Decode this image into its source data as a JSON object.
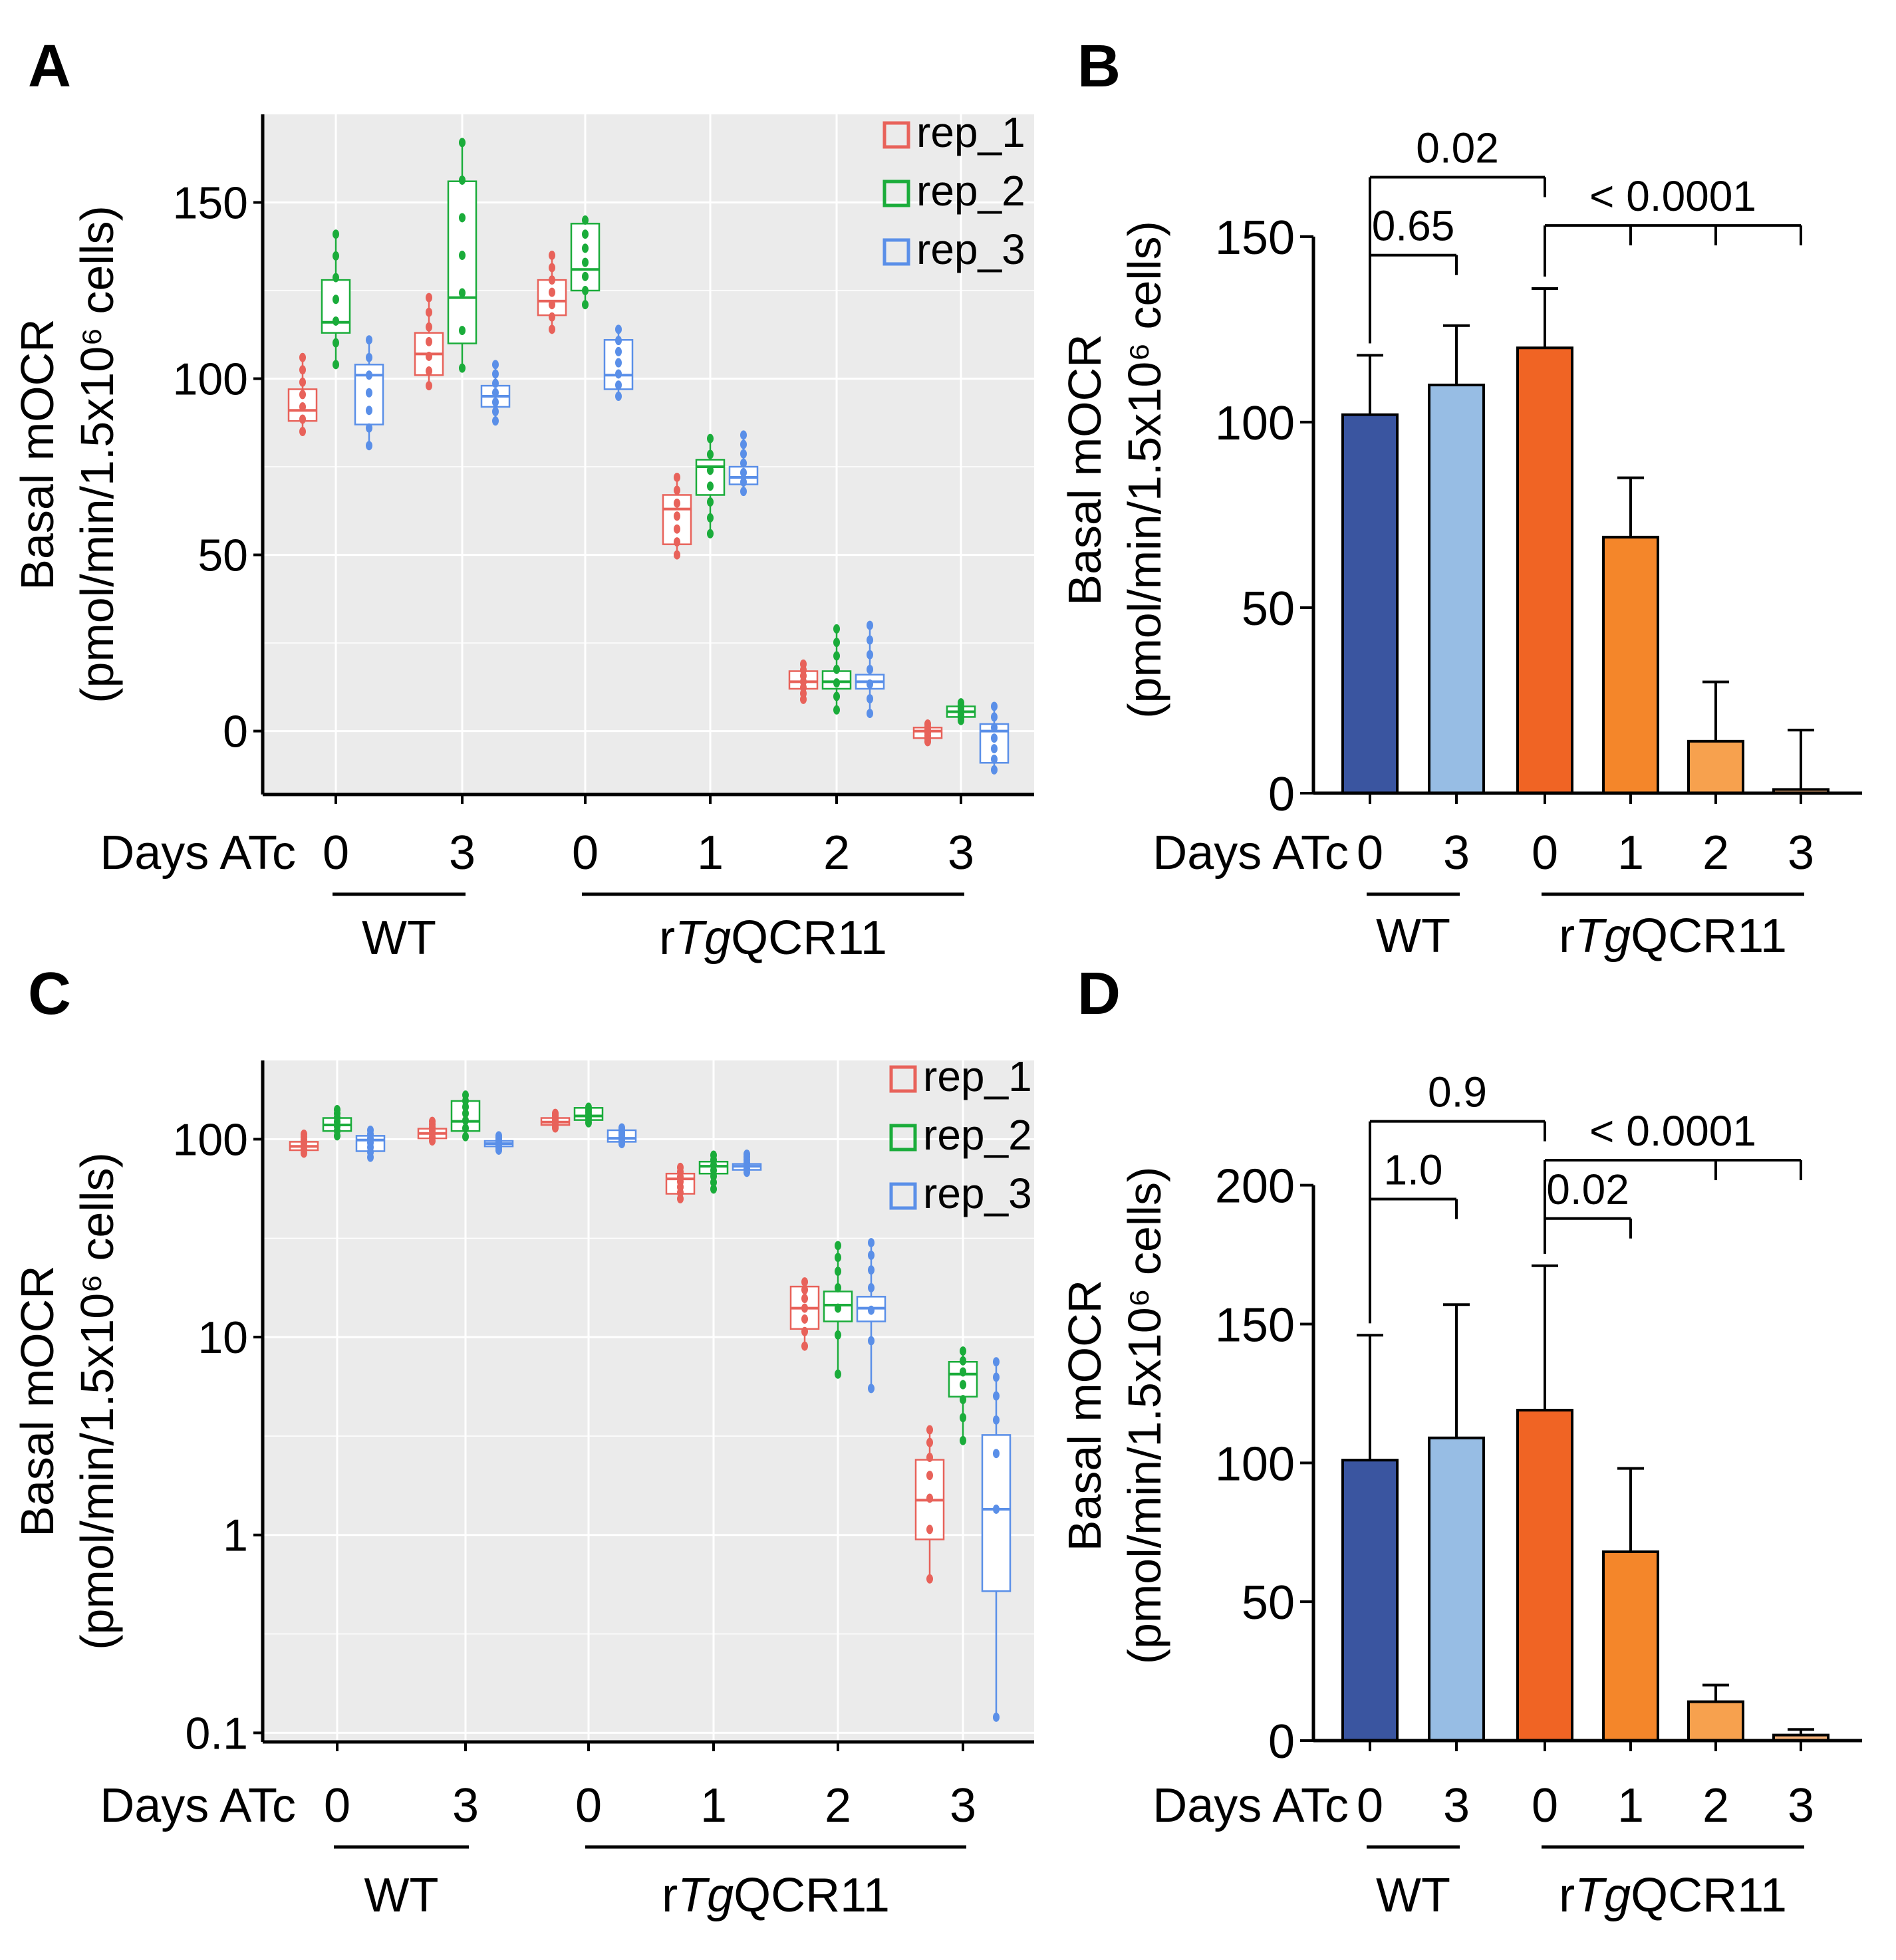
{
  "colors": {
    "rep_1": "#e8625a",
    "rep_2": "#1aac3a",
    "rep_3": "#5a8fe8",
    "panel_bg": "#ebebeb",
    "bar_wt0": "#3a55a0",
    "bar_wt3": "#97bde4",
    "bar_r0": "#f06424",
    "bar_r1": "#f4862a",
    "bar_r2": "#f7a14e",
    "bar_r3": "#f8b57c"
  },
  "chart_data": [
    {
      "panel": "A",
      "type": "box",
      "ylabel_line1": "Basal mOCR",
      "ylabel_line2": "(pmol/min/1.5x10⁶ cells)",
      "xlabel": "Days ATc",
      "yscale": "linear",
      "ylim": [
        -18,
        175
      ],
      "yticks": [
        0,
        50,
        100,
        150
      ],
      "ytick_labels": [
        "0",
        "50",
        "100",
        "150"
      ],
      "minor_grid": [
        25,
        75,
        125
      ],
      "categories": [
        "0",
        "3",
        "0",
        "1",
        "2",
        "3"
      ],
      "groups": [
        {
          "label": "WT",
          "from": 0,
          "to": 1
        },
        {
          "label": "rTgQCR11",
          "label_parts": [
            "r",
            "Tg",
            "QCR11"
          ],
          "from": 2,
          "to": 5
        }
      ],
      "legend": [
        "rep_1",
        "rep_2",
        "rep_3"
      ],
      "series": [
        {
          "name": "rep_1",
          "boxes": [
            {
              "q1": 88,
              "med": 91,
              "q3": 97,
              "min": 85,
              "max": 106
            },
            {
              "q1": 101,
              "med": 107,
              "q3": 113,
              "min": 98,
              "max": 123
            },
            {
              "q1": 118,
              "med": 122,
              "q3": 128,
              "min": 114,
              "max": 135
            },
            {
              "q1": 53,
              "med": 63,
              "q3": 67,
              "min": 50,
              "max": 72
            },
            {
              "q1": 12,
              "med": 14,
              "q3": 17,
              "min": 9,
              "max": 19
            },
            {
              "q1": -2,
              "med": 0,
              "q3": 1,
              "min": -3,
              "max": 2
            }
          ]
        },
        {
          "name": "rep_2",
          "boxes": [
            {
              "q1": 113,
              "med": 116,
              "q3": 128,
              "min": 104,
              "max": 141
            },
            {
              "q1": 110,
              "med": 123,
              "q3": 156,
              "min": 103,
              "max": 167
            },
            {
              "q1": 125,
              "med": 131,
              "q3": 144,
              "min": 121,
              "max": 145
            },
            {
              "q1": 67,
              "med": 75,
              "q3": 77,
              "min": 56,
              "max": 83
            },
            {
              "q1": 12,
              "med": 14,
              "q3": 17,
              "min": 6,
              "max": 29
            },
            {
              "q1": 4,
              "med": 5.5,
              "q3": 7,
              "min": 3,
              "max": 8
            }
          ]
        },
        {
          "name": "rep_3",
          "boxes": [
            {
              "q1": 87,
              "med": 101,
              "q3": 104,
              "min": 81,
              "max": 111
            },
            {
              "q1": 92,
              "med": 95,
              "q3": 98,
              "min": 88,
              "max": 104
            },
            {
              "q1": 97,
              "med": 101,
              "q3": 111,
              "min": 95,
              "max": 114
            },
            {
              "q1": 70,
              "med": 72,
              "q3": 75,
              "min": 68,
              "max": 84
            },
            {
              "q1": 12,
              "med": 14,
              "q3": 16,
              "min": 5,
              "max": 30
            },
            {
              "q1": -9,
              "med": 0,
              "q3": 2,
              "min": -11,
              "max": 7
            }
          ]
        }
      ]
    },
    {
      "panel": "B",
      "type": "bar",
      "ylabel_line1": "Basal mOCR",
      "ylabel_line2": "(pmol/min/1.5x10⁶ cells)",
      "xlabel": "Days ATc",
      "ylim": [
        0,
        160
      ],
      "yticks": [
        0,
        50,
        100,
        150
      ],
      "ytick_labels": [
        "0",
        "50",
        "100",
        "150"
      ],
      "categories": [
        "0",
        "3",
        "0",
        "1",
        "2",
        "3"
      ],
      "groups": [
        {
          "label": "WT",
          "from": 0,
          "to": 1
        },
        {
          "label": "rTgQCR11",
          "label_parts": [
            "r",
            "Tg",
            "QCR11"
          ],
          "from": 2,
          "to": 5
        }
      ],
      "values": [
        102,
        110,
        120,
        69,
        14,
        1
      ],
      "errors": [
        16,
        16,
        16,
        16,
        16,
        16
      ],
      "brackets": [
        {
          "label": "0.65",
          "from": 0,
          "to": [
            1
          ],
          "y": 145
        },
        {
          "label": "0.02",
          "from": 0,
          "to": [
            2
          ],
          "y": 166
        },
        {
          "label": "< 0.0001",
          "from": 2,
          "to": [
            3,
            4,
            5
          ],
          "y": 153
        }
      ]
    },
    {
      "panel": "C",
      "type": "box",
      "ylabel_line1": "Basal mOCR",
      "ylabel_line2": "(pmol/min/1.5x10⁶ cells)",
      "xlabel": "Days ATc",
      "yscale": "log",
      "ylim": [
        0.09,
        250
      ],
      "yticks": [
        0.1,
        1,
        10,
        100
      ],
      "ytick_labels": [
        "0.1",
        "1",
        "10",
        "100"
      ],
      "minor_grid": [
        0.316,
        3.16,
        31.6
      ],
      "categories": [
        "0",
        "3",
        "0",
        "1",
        "2",
        "3"
      ],
      "groups": [
        {
          "label": "WT",
          "from": 0,
          "to": 1
        },
        {
          "label": "rTgQCR11",
          "label_parts": [
            "r",
            "Tg",
            "QCR11"
          ],
          "from": 2,
          "to": 5
        }
      ],
      "legend": [
        "rep_1",
        "rep_2",
        "rep_3"
      ],
      "series": [
        {
          "name": "rep_1",
          "boxes": [
            {
              "q1": 88,
              "med": 92,
              "q3": 97,
              "min": 85,
              "max": 106
            },
            {
              "q1": 101,
              "med": 107,
              "q3": 113,
              "min": 98,
              "max": 123
            },
            {
              "q1": 118,
              "med": 122,
              "q3": 128,
              "min": 114,
              "max": 135
            },
            {
              "q1": 53,
              "med": 63,
              "q3": 67,
              "min": 50,
              "max": 72
            },
            {
              "q1": 11,
              "med": 14,
              "q3": 18,
              "min": 9,
              "max": 19
            },
            {
              "q1": 0.95,
              "med": 1.5,
              "q3": 2.4,
              "min": 0.6,
              "max": 3.4
            }
          ]
        },
        {
          "name": "rep_2",
          "boxes": [
            {
              "q1": 110,
              "med": 118,
              "q3": 128,
              "min": 104,
              "max": 141
            },
            {
              "q1": 110,
              "med": 123,
              "q3": 156,
              "min": 103,
              "max": 167
            },
            {
              "q1": 125,
              "med": 131,
              "q3": 144,
              "min": 121,
              "max": 145
            },
            {
              "q1": 67,
              "med": 73,
              "q3": 77,
              "min": 56,
              "max": 83
            },
            {
              "q1": 12,
              "med": 14.5,
              "q3": 17,
              "min": 6.5,
              "max": 29
            },
            {
              "q1": 5,
              "med": 6.5,
              "q3": 7.5,
              "min": 3,
              "max": 8.5
            }
          ]
        },
        {
          "name": "rep_3",
          "boxes": [
            {
              "q1": 87,
              "med": 99,
              "q3": 104,
              "min": 81,
              "max": 111
            },
            {
              "q1": 92,
              "med": 95,
              "q3": 98,
              "min": 88,
              "max": 104
            },
            {
              "q1": 97,
              "med": 101,
              "q3": 111,
              "min": 95,
              "max": 114
            },
            {
              "q1": 70,
              "med": 73,
              "q3": 75,
              "min": 68,
              "max": 84
            },
            {
              "q1": 12,
              "med": 14,
              "q3": 16,
              "min": 5.5,
              "max": 30
            },
            {
              "q1": 0.52,
              "med": 1.35,
              "q3": 3.2,
              "min": 0.12,
              "max": 7.5
            }
          ]
        }
      ]
    },
    {
      "panel": "D",
      "type": "bar",
      "ylabel_line1": "Basal mOCR",
      "ylabel_line2": "(pmol/min/1.5x10⁶ cells)",
      "xlabel": "Days ATc",
      "ylim": [
        0,
        215
      ],
      "yticks": [
        0,
        50,
        100,
        150,
        200
      ],
      "ytick_labels": [
        "0",
        "50",
        "100",
        "150",
        "200"
      ],
      "categories": [
        "0",
        "3",
        "0",
        "1",
        "2",
        "3"
      ],
      "groups": [
        {
          "label": "WT",
          "from": 0,
          "to": 1
        },
        {
          "label": "rTgQCR11",
          "label_parts": [
            "r",
            "Tg",
            "QCR11"
          ],
          "from": 2,
          "to": 5
        }
      ],
      "values": [
        101,
        109,
        119,
        68,
        14,
        2
      ],
      "errors": [
        45,
        48,
        52,
        30,
        6,
        2
      ],
      "brackets": [
        {
          "label": "1.0",
          "from": 0,
          "to": [
            1
          ],
          "y": 195
        },
        {
          "label": "0.9",
          "from": 0,
          "to": [
            2
          ],
          "y": 223
        },
        {
          "label": "0.02",
          "from": 2,
          "to": [
            3
          ],
          "y": 188
        },
        {
          "label": "< 0.0001",
          "from": 2,
          "to": [
            4,
            5
          ],
          "y": 209
        }
      ]
    }
  ]
}
